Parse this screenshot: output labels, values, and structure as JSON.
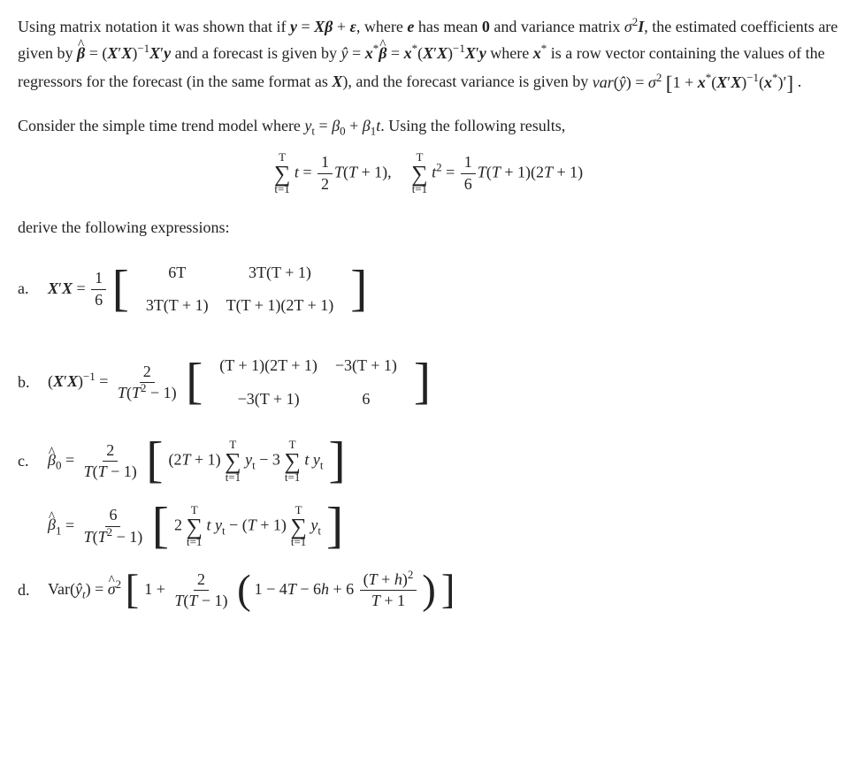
{
  "para1_a": "Using matrix notation it was shown that if ",
  "para1_b": ", where ",
  "para1_c": " has mean ",
  "para1_d": " and variance matrix ",
  "para1_e": ", the estimated coefficients are given by ",
  "para1_f": " and a forecast is given by ",
  "para1_g": " where ",
  "para1_h": " is a row vector containing the values of the regressors for the forecast (in the same format as ",
  "para1_i": "), and the forecast variance is given by ",
  "para1_j": " .",
  "para2_a": "Consider the simple time trend model where ",
  "para2_b": ". Using the following results,",
  "para3": "derive the following expressions:",
  "eq": {
    "y_eq": "y = Xβ + ε",
    "e": "e",
    "zero": "0",
    "sigI": "σ",
    "sigI2": "I",
    "beta_hat": "β",
    "Xp": "X",
    "inv_sup": "−1",
    "xstar": "x",
    "star": "*",
    "yhat": "ŷ",
    "var_y": "var(ŷ) = σ",
    "sum_t1": "t",
    "sum_low": "t=1",
    "sum_hi": "T",
    "half": "1",
    "half2": "2",
    "sumt_rhs": "T(T + 1),",
    "sumt2_rhs_n": "1",
    "sumt2_rhs_d": "6",
    "sumt2_rhs": "T(T + 1)(2T + 1)",
    "yt_model": "y",
    "yt_sub": "t",
    "eqs": " = β",
    "b0": "0",
    "plus": " + β",
    "b1": "1",
    "tvar": "t"
  },
  "labels": {
    "a": "a.",
    "b": "b.",
    "c": "c.",
    "d": "d."
  },
  "matA": {
    "pref": "1",
    "prefd": "6",
    "r1c1": "6T",
    "r1c2": "3T(T + 1)",
    "r2c1": "3T(T + 1)",
    "r2c2": "T(T + 1)(2T + 1)"
  },
  "matB": {
    "pref_n": "2",
    "pref_d": "T(T² − 1)",
    "r1c1": "(T + 1)(2T + 1)",
    "r1c2": "−3(T + 1)",
    "r2c1": "−3(T + 1)",
    "r2c2": "6"
  },
  "exprC": {
    "b0_pref_n": "2",
    "b0_pref_d": "T(T − 1)",
    "b0_t1": "(2T + 1)",
    "b0_y": "y",
    "b0_minus": " − 3",
    "b1_pref_n": "6",
    "b1_pref_d": "T(T² − 1)",
    "b1_t1": "2",
    "b1_middle": " − (T + 1)"
  },
  "exprD": {
    "lhs": "Var(ŷ",
    "lhs2": ") = ",
    "sig": "σ",
    "one_plus": "1 + ",
    "fr_n": "2",
    "fr_d": "T(T − 1)",
    "inner": "1 − 4T − 6h + 6",
    "last_n": "(T + h)²",
    "last_d": "T + 1"
  }
}
